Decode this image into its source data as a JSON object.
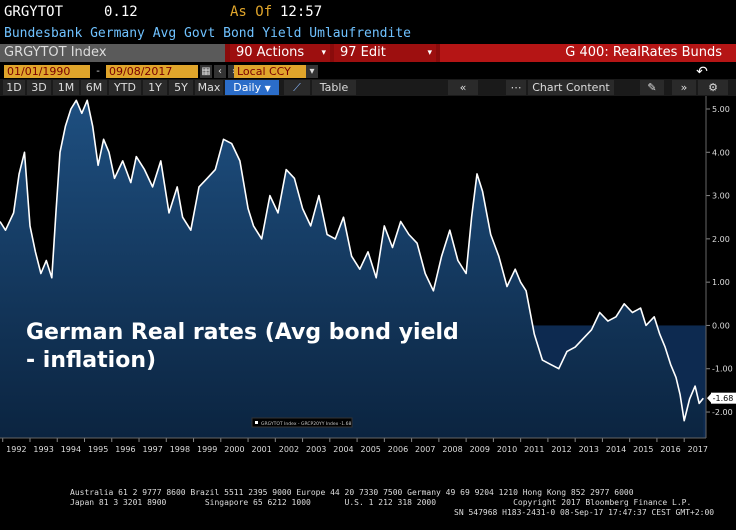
{
  "header": {
    "ticker": "GRGYTOT",
    "value": "0.12",
    "as_of_label": "As Of",
    "time": "12:57",
    "description": "Bundesbank Germany Avg Govt Bond Yield Umlaufrendite"
  },
  "toolbar": {
    "security": "GRGYTOT Index",
    "actions": "90 Actions",
    "edit": "97 Edit",
    "graph_name": "G 400: RealRates Bunds"
  },
  "date_range": {
    "start": "01/01/1990",
    "end": "09/08/2017",
    "currency": "Local CCY"
  },
  "ranges": [
    "1D",
    "3D",
    "1M",
    "6M",
    "YTD",
    "1Y",
    "5Y",
    "Max"
  ],
  "frequency": "Daily",
  "table_label": "Table",
  "chart_content_label": "Chart Content",
  "annotation": {
    "line1": "German Real rates (Avg bond yield",
    "line2": "- inflation)"
  },
  "legend_text": "GRGYTOT Index - GRCP20YY Index -1.68",
  "last_value_label": "-1.68",
  "colors": {
    "line": "#ffffff",
    "fill_top": "#1e4f80",
    "fill_bottom": "#0b2440",
    "negative_band": "#0d2a50",
    "toolbar_red": "#8a0b0b",
    "active_blue": "#2b6dc9",
    "input_orange": "#e0a52b"
  },
  "chart_data": {
    "type": "area",
    "title": "German Real rates (Avg bond yield - inflation)",
    "x_tick_labels": [
      "1992",
      "1993",
      "1994",
      "1995",
      "1996",
      "1997",
      "1998",
      "1999",
      "2000",
      "2001",
      "2002",
      "2003",
      "2004",
      "2005",
      "2006",
      "2007",
      "2008",
      "2009",
      "2010",
      "2011",
      "2012",
      "2013",
      "2014",
      "2015",
      "2016",
      "2017"
    ],
    "y_tick_labels": [
      "5.00",
      "4.00",
      "3.00",
      "2.00",
      "1.00",
      "0.00",
      "-1.00",
      "-2.00"
    ],
    "xlim": [
      1991.9,
      2017.8
    ],
    "ylim": [
      -2.6,
      5.3
    ],
    "grid": false,
    "series": [
      {
        "name": "GRGYTOT Index - GRCP20YY Index",
        "x": [
          1991.9,
          1992.1,
          1992.4,
          1992.6,
          1992.8,
          1993.0,
          1993.2,
          1993.4,
          1993.6,
          1993.8,
          1993.95,
          1994.1,
          1994.3,
          1994.5,
          1994.7,
          1994.9,
          1995.1,
          1995.3,
          1995.5,
          1995.7,
          1995.9,
          1996.1,
          1996.4,
          1996.7,
          1996.9,
          1997.2,
          1997.5,
          1997.8,
          1998.1,
          1998.4,
          1998.6,
          1998.9,
          1999.2,
          1999.5,
          1999.8,
          2000.1,
          2000.4,
          2000.7,
          2001.0,
          2001.2,
          2001.5,
          2001.8,
          2002.1,
          2002.4,
          2002.7,
          2003.0,
          2003.3,
          2003.6,
          2003.9,
          2004.2,
          2004.5,
          2004.8,
          2005.1,
          2005.4,
          2005.7,
          2006.0,
          2006.3,
          2006.6,
          2006.9,
          2007.2,
          2007.5,
          2007.8,
          2008.1,
          2008.4,
          2008.7,
          2009.0,
          2009.2,
          2009.4,
          2009.6,
          2009.9,
          2010.2,
          2010.5,
          2010.8,
          2011.0,
          2011.2,
          2011.5,
          2011.8,
          2012.1,
          2012.4,
          2012.7,
          2013.0,
          2013.3,
          2013.6,
          2013.9,
          2014.2,
          2014.5,
          2014.8,
          2015.1,
          2015.4,
          2015.6,
          2015.9,
          2016.1,
          2016.3,
          2016.5,
          2016.7,
          2016.85,
          2017.0,
          2017.2,
          2017.4,
          2017.55,
          2017.7
        ],
        "values": [
          2.4,
          2.2,
          2.6,
          3.5,
          4.0,
          2.3,
          1.7,
          1.2,
          1.5,
          1.1,
          2.6,
          4.0,
          4.6,
          5.0,
          5.2,
          4.9,
          5.2,
          4.6,
          3.7,
          4.3,
          4.0,
          3.4,
          3.8,
          3.3,
          3.9,
          3.6,
          3.2,
          3.8,
          2.6,
          3.2,
          2.5,
          2.2,
          3.2,
          3.4,
          3.6,
          4.3,
          4.2,
          3.8,
          2.7,
          2.3,
          2.0,
          3.0,
          2.6,
          3.6,
          3.4,
          2.7,
          2.3,
          3.0,
          2.1,
          2.0,
          2.5,
          1.6,
          1.3,
          1.7,
          1.1,
          2.3,
          1.8,
          2.4,
          2.1,
          1.9,
          1.2,
          0.8,
          1.6,
          2.2,
          1.5,
          1.2,
          2.5,
          3.5,
          3.1,
          2.1,
          1.6,
          0.9,
          1.3,
          1.0,
          0.8,
          -0.2,
          -0.8,
          -0.9,
          -1.0,
          -0.6,
          -0.5,
          -0.3,
          -0.1,
          0.3,
          0.1,
          0.2,
          0.5,
          0.3,
          0.4,
          0.0,
          0.2,
          -0.2,
          -0.5,
          -0.9,
          -1.2,
          -1.6,
          -2.2,
          -1.7,
          -1.4,
          -1.8,
          -1.68
        ]
      }
    ]
  },
  "footer": {
    "line1": "Australia 61 2 9777 8600 Brazil 5511 2395 9000 Europe 44 20 7330 7500 Germany 49 69 9204 1210 Hong Kong 852 2977 6000",
    "line2": "Japan 81 3 3201 8900        Singapore 65 6212 1000       U.S. 1 212 318 2000                Copyright 2017 Bloomberg Finance L.P.",
    "line3": "SN 547968 H183-2431-0 08-Sep-17 17:47:37 CEST GMT+2:00"
  }
}
